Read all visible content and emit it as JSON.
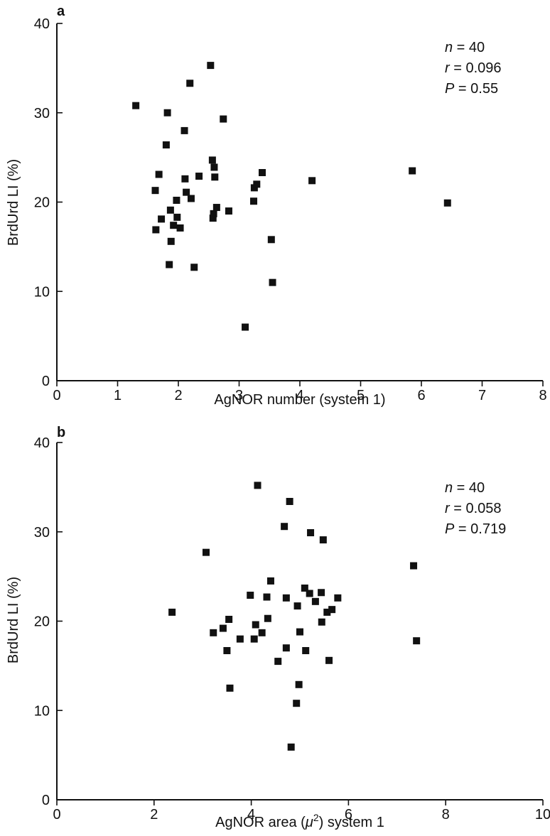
{
  "chart_data": [
    {
      "type": "scatter",
      "panel": "a",
      "xlabel": "AgNOR number (system 1)",
      "ylabel": "BrdUrd LI (%)",
      "xlim": [
        0,
        8
      ],
      "ylim": [
        0,
        40
      ],
      "xticks": [
        "0",
        "1",
        "2",
        "3",
        "4",
        "5",
        "6",
        "7",
        "8"
      ],
      "yticks": [
        "0",
        "10",
        "20",
        "30",
        "40"
      ],
      "stats": {
        "n_label": "n",
        "n_value": " = 40",
        "r_label": "r",
        "r_value": " = 0.096",
        "p_label": "P",
        "p_value": " = 0.55"
      },
      "points": [
        [
          1.3,
          30.8
        ],
        [
          1.62,
          21.3
        ],
        [
          1.63,
          16.9
        ],
        [
          1.68,
          23.1
        ],
        [
          1.72,
          18.1
        ],
        [
          1.8,
          26.4
        ],
        [
          1.82,
          30.0
        ],
        [
          1.85,
          13.0
        ],
        [
          1.87,
          19.1
        ],
        [
          1.88,
          15.6
        ],
        [
          1.92,
          17.4
        ],
        [
          1.97,
          20.2
        ],
        [
          1.98,
          18.3
        ],
        [
          2.03,
          17.1
        ],
        [
          2.1,
          28.0
        ],
        [
          2.11,
          22.6
        ],
        [
          2.13,
          21.1
        ],
        [
          2.19,
          33.3
        ],
        [
          2.21,
          20.4
        ],
        [
          2.26,
          12.7
        ],
        [
          2.34,
          22.9
        ],
        [
          2.53,
          35.3
        ],
        [
          2.56,
          24.7
        ],
        [
          2.57,
          18.2
        ],
        [
          2.58,
          18.7
        ],
        [
          2.59,
          23.9
        ],
        [
          2.6,
          22.8
        ],
        [
          2.63,
          19.4
        ],
        [
          2.74,
          29.3
        ],
        [
          2.83,
          19.0
        ],
        [
          3.1,
          6.0
        ],
        [
          3.24,
          20.1
        ],
        [
          3.25,
          21.6
        ],
        [
          3.29,
          22.0
        ],
        [
          3.38,
          23.3
        ],
        [
          3.53,
          15.8
        ],
        [
          3.55,
          11.0
        ],
        [
          4.2,
          22.4
        ],
        [
          5.85,
          23.5
        ],
        [
          6.43,
          19.9
        ]
      ]
    },
    {
      "type": "scatter",
      "panel": "b",
      "xlabel": "AgNOR area (μ²) system 1",
      "xlabel_parts": {
        "pre": "AgNOR area (",
        "mu": "μ",
        "sup": "2",
        "post": ") system 1"
      },
      "ylabel": "BrdUrd LI (%)",
      "xlim": [
        0,
        10
      ],
      "ylim": [
        0,
        40
      ],
      "xticks": [
        "0",
        "2",
        "4",
        "6",
        "8",
        "10"
      ],
      "yticks": [
        "0",
        "10",
        "20",
        "30",
        "40"
      ],
      "stats": {
        "n_label": "n",
        "n_value": " = 40",
        "r_label": "r",
        "r_value": " = 0.058",
        "p_label": "P",
        "p_value": " = 0.719"
      },
      "points": [
        [
          2.37,
          21.0
        ],
        [
          3.07,
          27.7
        ],
        [
          3.22,
          18.7
        ],
        [
          3.42,
          19.2
        ],
        [
          3.5,
          16.7
        ],
        [
          3.54,
          20.2
        ],
        [
          3.56,
          12.5
        ],
        [
          3.77,
          18.0
        ],
        [
          3.98,
          22.9
        ],
        [
          4.06,
          18.0
        ],
        [
          4.09,
          19.6
        ],
        [
          4.13,
          35.2
        ],
        [
          4.22,
          18.7
        ],
        [
          4.32,
          22.7
        ],
        [
          4.34,
          20.3
        ],
        [
          4.4,
          24.5
        ],
        [
          4.55,
          15.5
        ],
        [
          4.68,
          30.6
        ],
        [
          4.72,
          17.0
        ],
        [
          4.72,
          22.6
        ],
        [
          4.79,
          33.4
        ],
        [
          4.82,
          5.9
        ],
        [
          4.93,
          10.8
        ],
        [
          4.95,
          21.7
        ],
        [
          4.98,
          12.9
        ],
        [
          5.0,
          18.8
        ],
        [
          5.1,
          23.7
        ],
        [
          5.12,
          16.7
        ],
        [
          5.2,
          23.1
        ],
        [
          5.22,
          29.9
        ],
        [
          5.32,
          22.2
        ],
        [
          5.44,
          23.2
        ],
        [
          5.45,
          19.9
        ],
        [
          5.48,
          29.1
        ],
        [
          5.56,
          21.0
        ],
        [
          5.6,
          15.6
        ],
        [
          5.66,
          21.3
        ],
        [
          5.78,
          22.6
        ],
        [
          7.34,
          26.2
        ],
        [
          7.4,
          17.8
        ]
      ]
    }
  ]
}
